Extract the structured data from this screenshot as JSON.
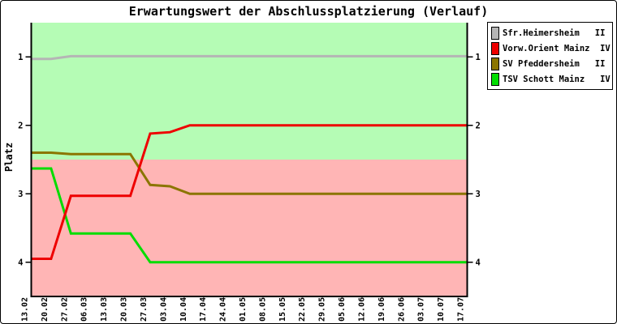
{
  "window": {
    "background": "#ffffff",
    "border_color": "#000000"
  },
  "chart_data": {
    "type": "line",
    "title": "Erwartungswert der Abschlussplatzierung (Verlauf)",
    "ylabel": "Platz",
    "x_labels": [
      "13.02",
      "20.02",
      "27.02",
      "06.03",
      "13.03",
      "20.03",
      "27.03",
      "03.04",
      "10.04",
      "17.04",
      "24.04",
      "01.05",
      "08.05",
      "15.05",
      "22.05",
      "29.05",
      "05.06",
      "12.06",
      "19.06",
      "26.06",
      "03.07",
      "10.07",
      "17.07"
    ],
    "y_ticks": [
      1,
      2,
      3,
      4
    ],
    "ylim": [
      0.5,
      4.5
    ],
    "y_axis_inverted": true,
    "y_ticks_both_sides": true,
    "grid": false,
    "axis_color": "#000000",
    "bands": [
      {
        "name": "upper-green-zone",
        "from": 0.5,
        "to": 2.5,
        "color": "#b5fcb5"
      },
      {
        "name": "lower-red-zone",
        "from": 2.5,
        "to": 4.5,
        "color": "#ffb5b5"
      }
    ],
    "legend": {
      "position": "outside-top-right",
      "border_color": "#000000",
      "background": "#ffffff"
    },
    "series": [
      {
        "name": "Sfr.Heimersheim",
        "division": "II",
        "legend_label": "Sfr.Heimersheim   II",
        "color": "#b5b5b5",
        "values": [
          1.03,
          1.03,
          0.99,
          0.99,
          0.99,
          0.99,
          0.99,
          0.99,
          0.99,
          0.99,
          0.99,
          0.99,
          0.99,
          0.99,
          0.99,
          0.99,
          0.99,
          0.99,
          0.99,
          0.99,
          0.99,
          0.99,
          0.99
        ]
      },
      {
        "name": "Vorw.Orient Mainz",
        "division": "IV",
        "legend_label": "Vorw.Orient Mainz  IV",
        "color": "#ee0000",
        "values": [
          3.95,
          3.95,
          3.03,
          3.03,
          3.03,
          3.03,
          2.12,
          2.1,
          2.0,
          2.0,
          2.0,
          2.0,
          2.0,
          2.0,
          2.0,
          2.0,
          2.0,
          2.0,
          2.0,
          2.0,
          2.0,
          2.0,
          2.0
        ]
      },
      {
        "name": "SV Pfeddersheim",
        "division": "II",
        "legend_label": "SV Pfeddersheim   II",
        "color": "#8b7500",
        "values": [
          2.4,
          2.4,
          2.42,
          2.42,
          2.42,
          2.42,
          2.87,
          2.89,
          3.0,
          3.0,
          3.0,
          3.0,
          3.0,
          3.0,
          3.0,
          3.0,
          3.0,
          3.0,
          3.0,
          3.0,
          3.0,
          3.0,
          3.0
        ]
      },
      {
        "name": "TSV Schott Mainz",
        "division": "IV",
        "legend_label": "TSV Schott Mainz   IV",
        "color": "#00dd00",
        "values": [
          2.63,
          2.63,
          3.58,
          3.58,
          3.58,
          3.58,
          4.0,
          4.0,
          4.0,
          4.0,
          4.0,
          4.0,
          4.0,
          4.0,
          4.0,
          4.0,
          4.0,
          4.0,
          4.0,
          4.0,
          4.0,
          4.0,
          4.0
        ]
      }
    ]
  }
}
